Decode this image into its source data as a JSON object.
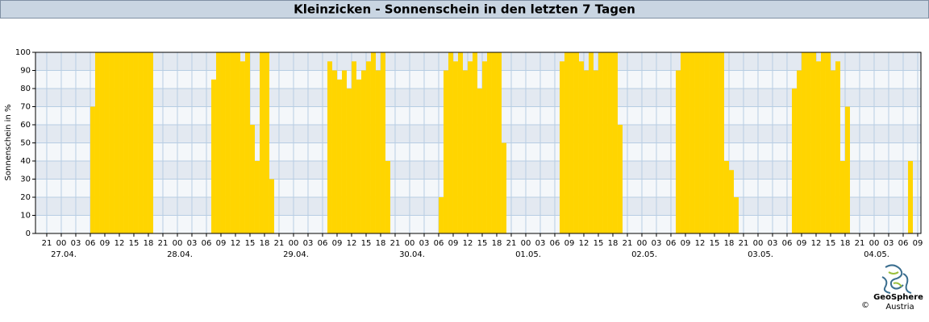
{
  "chart_data": {
    "type": "bar",
    "title": "Kleinzicken - Sonnenschein in den letzten 7 Tagen",
    "y_label": "Sonnenschein in %",
    "x": [
      6,
      7,
      8,
      9,
      10,
      11,
      12,
      13,
      14,
      15,
      16,
      17,
      18,
      31,
      32,
      33,
      34,
      35,
      36,
      37,
      38,
      39,
      40,
      41,
      42,
      43,
      55,
      56,
      57,
      58,
      59,
      60,
      61,
      62,
      63,
      64,
      65,
      66,
      67,
      78,
      79,
      80,
      81,
      82,
      83,
      84,
      85,
      86,
      87,
      88,
      89,
      90,
      91,
      103,
      104,
      105,
      106,
      107,
      108,
      109,
      110,
      111,
      112,
      113,
      114,
      115,
      127,
      128,
      129,
      130,
      131,
      132,
      133,
      134,
      135,
      136,
      137,
      138,
      139,
      151,
      152,
      153,
      154,
      155,
      156,
      157,
      158,
      159,
      160,
      161,
      162,
      175
    ],
    "values": [
      70,
      100,
      100,
      100,
      100,
      100,
      100,
      100,
      100,
      100,
      100,
      100,
      100,
      85,
      100,
      100,
      100,
      100,
      100,
      95,
      100,
      60,
      40,
      100,
      100,
      30,
      95,
      90,
      85,
      90,
      80,
      95,
      85,
      90,
      95,
      100,
      90,
      100,
      40,
      20,
      90,
      100,
      95,
      100,
      90,
      95,
      100,
      80,
      95,
      100,
      100,
      100,
      50,
      95,
      100,
      100,
      100,
      95,
      90,
      100,
      90,
      100,
      100,
      100,
      100,
      60,
      90,
      100,
      100,
      100,
      100,
      100,
      100,
      100,
      100,
      100,
      40,
      35,
      20,
      80,
      90,
      100,
      100,
      100,
      95,
      100,
      100,
      90,
      95,
      40,
      70,
      40
    ],
    "color": "#ffd500",
    "xlim": [
      -5.33,
      177.67
    ],
    "xticks": [
      {
        "value": -3,
        "label": "21"
      },
      {
        "value": 0,
        "label": "00"
      },
      {
        "value": 3,
        "label": "03"
      },
      {
        "value": 6,
        "label": "06"
      },
      {
        "value": 9,
        "label": "09"
      },
      {
        "value": 12,
        "label": "12"
      },
      {
        "value": 15,
        "label": "15"
      },
      {
        "value": 18,
        "label": "18"
      },
      {
        "value": 21,
        "label": "21"
      },
      {
        "value": 24,
        "label": "00"
      },
      {
        "value": 27,
        "label": "03"
      },
      {
        "value": 30,
        "label": "06"
      },
      {
        "value": 33,
        "label": "09"
      },
      {
        "value": 36,
        "label": "12"
      },
      {
        "value": 39,
        "label": "15"
      },
      {
        "value": 42,
        "label": "18"
      },
      {
        "value": 45,
        "label": "21"
      },
      {
        "value": 48,
        "label": "00"
      },
      {
        "value": 51,
        "label": "03"
      },
      {
        "value": 54,
        "label": "06"
      },
      {
        "value": 57,
        "label": "09"
      },
      {
        "value": 60,
        "label": "12"
      },
      {
        "value": 63,
        "label": "15"
      },
      {
        "value": 66,
        "label": "18"
      },
      {
        "value": 69,
        "label": "21"
      },
      {
        "value": 72,
        "label": "00"
      },
      {
        "value": 75,
        "label": "03"
      },
      {
        "value": 78,
        "label": "06"
      },
      {
        "value": 81,
        "label": "09"
      },
      {
        "value": 84,
        "label": "12"
      },
      {
        "value": 87,
        "label": "15"
      },
      {
        "value": 90,
        "label": "18"
      },
      {
        "value": 93,
        "label": "21"
      },
      {
        "value": 96,
        "label": "00"
      },
      {
        "value": 99,
        "label": "03"
      },
      {
        "value": 102,
        "label": "06"
      },
      {
        "value": 105,
        "label": "09"
      },
      {
        "value": 108,
        "label": "12"
      },
      {
        "value": 111,
        "label": "15"
      },
      {
        "value": 114,
        "label": "18"
      },
      {
        "value": 117,
        "label": "21"
      },
      {
        "value": 120,
        "label": "00"
      },
      {
        "value": 123,
        "label": "03"
      },
      {
        "value": 126,
        "label": "06"
      },
      {
        "value": 129,
        "label": "09"
      },
      {
        "value": 132,
        "label": "12"
      },
      {
        "value": 135,
        "label": "15"
      },
      {
        "value": 138,
        "label": "18"
      },
      {
        "value": 141,
        "label": "21"
      },
      {
        "value": 144,
        "label": "00"
      },
      {
        "value": 147,
        "label": "03"
      },
      {
        "value": 150,
        "label": "06"
      },
      {
        "value": 153,
        "label": "09"
      },
      {
        "value": 156,
        "label": "12"
      },
      {
        "value": 159,
        "label": "15"
      },
      {
        "value": 162,
        "label": "18"
      },
      {
        "value": 165,
        "label": "21"
      },
      {
        "value": 168,
        "label": "00"
      },
      {
        "value": 171,
        "label": "03"
      },
      {
        "value": 174,
        "label": "06"
      },
      {
        "value": 177,
        "label": "09"
      }
    ],
    "date_labels": [
      {
        "value": 0,
        "label": "27.04."
      },
      {
        "value": 24,
        "label": "28.04."
      },
      {
        "value": 48,
        "label": "29.04."
      },
      {
        "value": 72,
        "label": "30.04."
      },
      {
        "value": 96,
        "label": "01.05."
      },
      {
        "value": 120,
        "label": "02.05."
      },
      {
        "value": 144,
        "label": "03.05."
      },
      {
        "value": 168,
        "label": "04.05."
      }
    ],
    "ylim": [
      0,
      100
    ],
    "yticks": [
      0,
      10,
      20,
      30,
      40,
      50,
      60,
      70,
      80,
      90,
      100
    ],
    "grid": true
  },
  "logo": {
    "name": "GeoSphere",
    "sub": "Austria",
    "copyright": "©"
  }
}
